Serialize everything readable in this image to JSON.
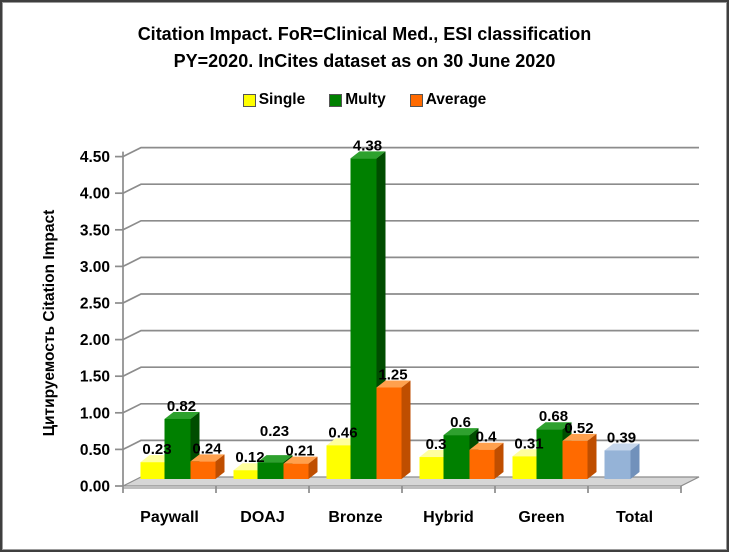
{
  "window": {
    "background": "#ffffff",
    "border_color": "#3f3f3f"
  },
  "title": {
    "line1": "Citation Impact. FoR=Clinical Med., ESI classification",
    "line2": "PY=2020. InCites dataset as on 30 June 2020"
  },
  "chart_data": {
    "type": "bar",
    "subtype": "3d-clustered-column",
    "title": "Citation Impact. FoR=Clinical Med., ESI classification PY=2020. InCites dataset as on 30 June 2020",
    "categories": [
      "Paywall",
      "DOAJ",
      "Bronze",
      "Hybrid",
      "Green",
      "Total"
    ],
    "series": [
      {
        "name": "Single",
        "in_legend": true,
        "color": "#FFFF00",
        "color_top": "#FFFF9E",
        "color_side": "#D9D900",
        "values": [
          0.23,
          0.12,
          0.46,
          0.3,
          0.31,
          null
        ]
      },
      {
        "name": "Multy",
        "in_legend": true,
        "color": "#008000",
        "color_top": "#2EA12E",
        "color_side": "#004D00",
        "values": [
          0.82,
          0.23,
          4.38,
          0.6,
          0.68,
          null
        ]
      },
      {
        "name": "Average",
        "in_legend": true,
        "color": "#FF6A00",
        "color_top": "#FFA04D",
        "color_side": "#BF4E00",
        "values": [
          0.24,
          0.21,
          1.25,
          0.4,
          0.52,
          null
        ]
      },
      {
        "name": "Total",
        "in_legend": false,
        "color": "#95B3D7",
        "color_top": "#C6D6EB",
        "color_side": "#7191BB",
        "values": [
          null,
          null,
          null,
          null,
          null,
          0.39
        ]
      }
    ],
    "xlabel": "",
    "ylabel": "Цитируемость Citation Impact",
    "ylim": [
      0,
      4.5
    ],
    "ytick_step": 0.5,
    "ytick_labels": [
      "0.00",
      "0.50",
      "1.00",
      "1.50",
      "2.00",
      "2.50",
      "3.00",
      "3.50",
      "4.00",
      "4.50"
    ],
    "grid": true,
    "legend_position": "top",
    "gridline_color": "#8C8C8C",
    "floor_color": "#D6D6D6",
    "label_adjustments": [
      {
        "category": "DOAJ",
        "series": "Multy",
        "dy": -18
      }
    ]
  }
}
